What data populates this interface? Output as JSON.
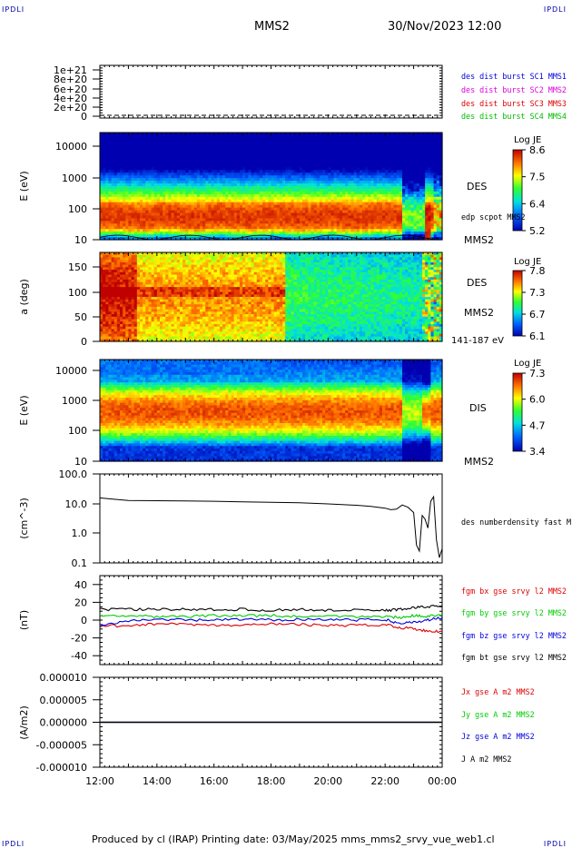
{
  "page": {
    "corner_label": "IPDLI",
    "spacecraft": "MMS2",
    "datetime": "30/Nov/2023 12:00",
    "footer": "Produced by cl (IRAP)   Printing date: 03/May/2025   mms_mms2_srvy_vue_web1.cl"
  },
  "chart_data": [
    {
      "type": "line",
      "id": "p1",
      "ytick_labels": [
        "1e+21",
        "8e+20",
        "6e+20",
        "4e+20",
        "2e+20",
        "0"
      ],
      "ylim": [
        0,
        1e+21
      ],
      "series": [
        {
          "name": "des dist burst SC1 MMS1",
          "color": "#0000dd",
          "values": []
        },
        {
          "name": "des dist burst SC2 MMS2",
          "color": "#dd00dd",
          "values": []
        },
        {
          "name": "des dist burst SC3 MMS3",
          "color": "#dd0000",
          "values": []
        },
        {
          "name": "des dist burst SC4 MMS4",
          "color": "#00bb00",
          "values": []
        }
      ]
    },
    {
      "type": "heatmap",
      "id": "p2",
      "ylabel": "E (eV)",
      "yscale": "log",
      "ylim": [
        10,
        30000
      ],
      "ytick_labels": [
        "10000",
        "1000",
        "100",
        "10"
      ],
      "label_right": "DES",
      "label_sc": "MMS2",
      "overlay_label": "edp scpot MMS2",
      "colorbar": {
        "title": "Log JE",
        "range": [
          5.2,
          8.6
        ],
        "tick_labels": [
          "8.6",
          "7.5",
          "6.4",
          "5.2"
        ]
      }
    },
    {
      "type": "heatmap",
      "id": "p3",
      "ylabel": "a (deg)",
      "ylim": [
        0,
        180
      ],
      "ytick_labels": [
        "150",
        "100",
        "50",
        "0"
      ],
      "label_right": "DES",
      "label_sc": "MMS2",
      "energy_range": "141-187 eV",
      "colorbar": {
        "title": "Log JE",
        "range": [
          6.1,
          7.8
        ],
        "tick_labels": [
          "7.8",
          "7.3",
          "6.7",
          "6.1"
        ]
      }
    },
    {
      "type": "heatmap",
      "id": "p4",
      "ylabel": "E (eV)",
      "yscale": "log",
      "ylim": [
        10,
        25000
      ],
      "ytick_labels": [
        "10000",
        "1000",
        "100",
        "10"
      ],
      "label_right": "DIS",
      "label_sc": "MMS2",
      "colorbar": {
        "title": "Log JE",
        "range": [
          3.4,
          7.3
        ],
        "tick_labels": [
          "7.3",
          "6.0",
          "4.7",
          "3.4"
        ]
      }
    },
    {
      "type": "line",
      "id": "p5",
      "ylabel": "(cm^-3)",
      "yscale": "log",
      "ylim": [
        0.1,
        100
      ],
      "ytick_labels": [
        "100.0",
        "10.0",
        "1.0",
        "0.1"
      ],
      "x_hours": [
        12.0,
        12.5,
        13.0,
        14.0,
        15.0,
        16.0,
        17.0,
        18.0,
        19.0,
        20.0,
        21.0,
        21.5,
        22.0,
        22.2,
        22.4,
        22.6,
        22.8,
        23.0,
        23.1,
        23.2,
        23.3,
        23.4,
        23.5,
        23.6,
        23.7,
        23.8,
        23.9,
        24.0
      ],
      "series": [
        {
          "name": "des numberdensity fast M",
          "color": "#000000",
          "values": [
            15.5,
            14.0,
            12.8,
            12.5,
            12.2,
            12.0,
            11.5,
            11.0,
            10.6,
            9.8,
            8.8,
            8.0,
            7.0,
            6.2,
            6.5,
            9.0,
            7.5,
            5.0,
            0.4,
            0.25,
            4.0,
            3.0,
            1.5,
            12.0,
            17.0,
            0.6,
            0.15,
            0.3
          ]
        }
      ]
    },
    {
      "type": "line",
      "id": "p6",
      "ylabel": "(nT)",
      "ylim": [
        -50,
        50
      ],
      "ytick_labels": [
        "40",
        "20",
        "0",
        "-20",
        "-40"
      ],
      "x_hours": [
        12,
        13,
        14,
        15,
        16,
        17,
        18,
        19,
        20,
        21,
        22,
        22.5,
        23,
        23.5,
        24
      ],
      "series": [
        {
          "name": "fgm bx gse srvy l2 MMS2",
          "color": "#dd0000",
          "values": [
            -7,
            -6,
            -4,
            -5,
            -6,
            -6,
            -4,
            -5,
            -6,
            -6,
            -5,
            -8,
            -10,
            -12,
            -13
          ]
        },
        {
          "name": "fgm by gse srvy l2 MMS2",
          "color": "#00cc00",
          "values": [
            6,
            5,
            4,
            4,
            5,
            5,
            5,
            4,
            4,
            4,
            4,
            3,
            5,
            4,
            6
          ]
        },
        {
          "name": "fgm bz gse srvy l2 MMS2",
          "color": "#0000dd",
          "values": [
            -6,
            -1,
            1,
            0,
            0,
            1,
            0,
            1,
            1,
            0,
            1,
            -4,
            -2,
            0,
            3
          ]
        },
        {
          "name": "fgm bt gse srvy l2 MMS2",
          "color": "#000000",
          "values": [
            12,
            12,
            12,
            12,
            12,
            12,
            11,
            12,
            11,
            11,
            11,
            12,
            14,
            15,
            16
          ]
        }
      ]
    },
    {
      "type": "line",
      "id": "p7",
      "ylabel": "(A/m2)",
      "ylim": [
        -1e-05,
        1e-05
      ],
      "ytick_labels": [
        "0.000010",
        "0.000005",
        "0.000000",
        "-0.000005",
        "-0.000010"
      ],
      "x_tick_labels": [
        "12:00",
        "14:00",
        "16:00",
        "18:00",
        "20:00",
        "22:00",
        "00:00"
      ],
      "x_hours": [
        12,
        24
      ],
      "series": [
        {
          "name": "Jx gse A m2 MMS2",
          "color": "#dd0000",
          "values": [
            0,
            0
          ]
        },
        {
          "name": "Jy gse A m2 MMS2",
          "color": "#00cc00",
          "values": [
            0,
            0
          ]
        },
        {
          "name": "Jz gse A m2 MMS2",
          "color": "#0000dd",
          "values": [
            0,
            0
          ]
        },
        {
          "name": "J A m2 MMS2",
          "color": "#000000",
          "values": [
            0,
            0
          ]
        }
      ]
    }
  ]
}
